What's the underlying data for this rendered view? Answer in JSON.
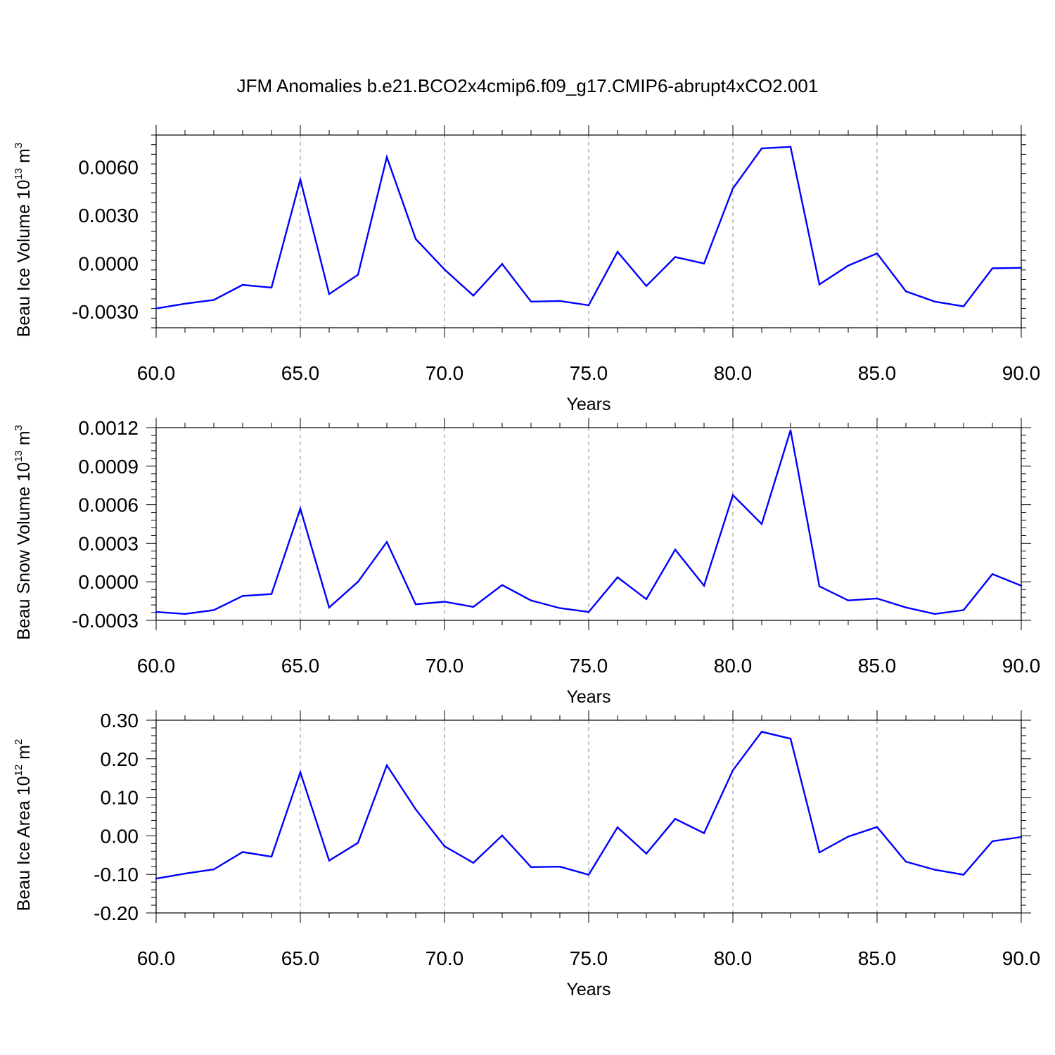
{
  "figure": {
    "title": "JFM Anomalies b.e21.BCO2x4cmip6.f09_g17.CMIP6-abrupt4xCO2.001"
  },
  "colors": {
    "line": "#0000ff",
    "axis": "#000000",
    "grid": "#888888",
    "background": "#ffffff"
  },
  "chart_data": [
    {
      "type": "line",
      "title": "",
      "xlabel": "Years",
      "ylabel": {
        "base": "Beau Ice Volume 10",
        "sup1": "13",
        "mid": " m",
        "sup2": "3"
      },
      "xlim": [
        60,
        90
      ],
      "ylim": [
        -0.004,
        0.008
      ],
      "xticks": [
        60,
        65,
        70,
        75,
        80,
        85,
        90
      ],
      "xtick_labels": [
        "60.0",
        "65.0",
        "70.0",
        "75.0",
        "80.0",
        "85.0",
        "90.0"
      ],
      "yticks": [
        -0.003,
        0.0,
        0.003,
        0.006
      ],
      "ytick_labels": [
        "-0.0030",
        "0.0000",
        "0.0030",
        "0.0060"
      ],
      "grid": "vertical-dashed",
      "legend": "none",
      "x": [
        60,
        61,
        62,
        63,
        64,
        65,
        66,
        67,
        68,
        69,
        70,
        71,
        72,
        73,
        74,
        75,
        76,
        77,
        78,
        79,
        80,
        81,
        82,
        83,
        84,
        85,
        86,
        87,
        88,
        89,
        90
      ],
      "series": [
        {
          "values": [
            -0.0028,
            -0.0025,
            -0.00227,
            -0.00133,
            -0.0015,
            0.00523,
            -0.0019,
            -0.0007,
            0.00663,
            0.00153,
            -0.00037,
            -0.002,
            -3e-05,
            -0.00237,
            -0.00233,
            -0.0026,
            0.00073,
            -0.0014,
            0.0004,
            0.0,
            0.00467,
            0.00717,
            0.00727,
            -0.0013,
            -0.00013,
            0.00063,
            -0.00173,
            -0.00237,
            -0.00267,
            -0.0003,
            -0.00027
          ]
        }
      ]
    },
    {
      "type": "line",
      "title": "",
      "xlabel": "Years",
      "ylabel": {
        "base": "Beau Snow Volume 10",
        "sup1": "13",
        "mid": " m",
        "sup2": "3"
      },
      "xlim": [
        60,
        90
      ],
      "ylim": [
        -0.0003,
        0.0012
      ],
      "xticks": [
        60,
        65,
        70,
        75,
        80,
        85,
        90
      ],
      "xtick_labels": [
        "60.0",
        "65.0",
        "70.0",
        "75.0",
        "80.0",
        "85.0",
        "90.0"
      ],
      "yticks": [
        -0.0003,
        0.0,
        0.0003,
        0.0006,
        0.0009,
        0.0012
      ],
      "ytick_labels": [
        "-0.0003",
        "0.0000",
        "0.0003",
        "0.0006",
        "0.0009",
        "0.0012"
      ],
      "grid": "vertical-dashed",
      "legend": "none",
      "x": [
        60,
        61,
        62,
        63,
        64,
        65,
        66,
        67,
        68,
        69,
        70,
        71,
        72,
        73,
        74,
        75,
        76,
        77,
        78,
        79,
        80,
        81,
        82,
        83,
        84,
        85,
        86,
        87,
        88,
        89,
        90
      ],
      "series": [
        {
          "values": [
            -0.000235,
            -0.00025,
            -0.00022,
            -0.00011,
            -9.5e-05,
            0.00057,
            -0.0002,
            0.0,
            0.00031,
            -0.000175,
            -0.000155,
            -0.000195,
            -2.5e-05,
            -0.000145,
            -0.000205,
            -0.000235,
            3.5e-05,
            -0.000135,
            0.00025,
            -3e-05,
            0.000675,
            0.00045,
            0.00118,
            -3.5e-05,
            -0.000145,
            -0.00013,
            -0.0002,
            -0.00025,
            -0.00022,
            6e-05,
            -3e-05
          ]
        }
      ]
    },
    {
      "type": "line",
      "title": "",
      "xlabel": "Years",
      "ylabel": {
        "base": "Beau Ice Area 10",
        "sup1": "12",
        "mid": " m",
        "sup2": "2"
      },
      "xlim": [
        60,
        90
      ],
      "ylim": [
        -0.2,
        0.3
      ],
      "xticks": [
        60,
        65,
        70,
        75,
        80,
        85,
        90
      ],
      "xtick_labels": [
        "60.0",
        "65.0",
        "70.0",
        "75.0",
        "80.0",
        "85.0",
        "90.0"
      ],
      "yticks": [
        -0.2,
        -0.1,
        0.0,
        0.1,
        0.2,
        0.3
      ],
      "ytick_labels": [
        "-0.20",
        "-0.10",
        "0.00",
        "0.10",
        "0.20",
        "0.30"
      ],
      "grid": "vertical-dashed",
      "legend": "none",
      "x": [
        60,
        61,
        62,
        63,
        64,
        65,
        66,
        67,
        68,
        69,
        70,
        71,
        72,
        73,
        74,
        75,
        76,
        77,
        78,
        79,
        80,
        81,
        82,
        83,
        84,
        85,
        86,
        87,
        88,
        89,
        90
      ],
      "series": [
        {
          "values": [
            -0.111,
            -0.098,
            -0.087,
            -0.042,
            -0.054,
            0.165,
            -0.064,
            -0.018,
            0.183,
            0.069,
            -0.027,
            -0.07,
            0.001,
            -0.081,
            -0.08,
            -0.101,
            0.022,
            -0.046,
            0.044,
            0.007,
            0.17,
            0.27,
            0.252,
            -0.043,
            -0.002,
            0.023,
            -0.067,
            -0.088,
            -0.101,
            -0.014,
            -0.003
          ]
        }
      ]
    }
  ]
}
